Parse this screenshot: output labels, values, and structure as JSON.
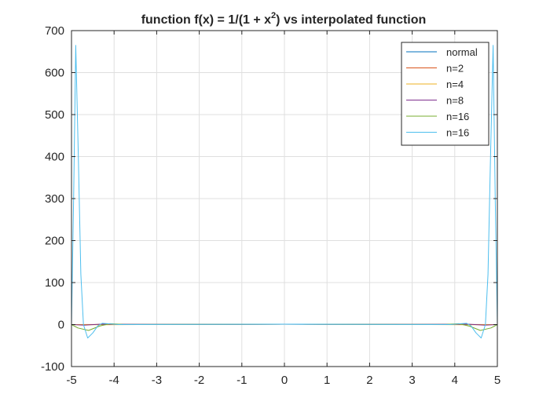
{
  "chart_data": {
    "type": "line",
    "title": {
      "prefix": "function  f(x) = 1/(1 + x",
      "superscript": "2",
      "suffix": ") vs interpolated function"
    },
    "xlabel": "",
    "ylabel": "",
    "xlim": [
      -5,
      5
    ],
    "ylim": [
      -100,
      700
    ],
    "xticks": [
      -5,
      -4,
      -3,
      -2,
      -1,
      0,
      1,
      2,
      3,
      4,
      5
    ],
    "yticks": [
      -100,
      0,
      100,
      200,
      300,
      400,
      500,
      600,
      700
    ],
    "xtick_labels": [
      "-5",
      "-4",
      "-3",
      "-2",
      "-1",
      "0",
      "1",
      "2",
      "3",
      "4",
      "5"
    ],
    "ytick_labels": [
      "-100",
      "0",
      "100",
      "200",
      "300",
      "400",
      "500",
      "600",
      "700"
    ],
    "grid": true,
    "legend_position": "top-right",
    "series": [
      {
        "name": "normal",
        "color": "#0072BD",
        "points": [
          [
            -5,
            0.04
          ],
          [
            -2.5,
            0.14
          ],
          [
            -1,
            0.5
          ],
          [
            0,
            1
          ],
          [
            1,
            0.5
          ],
          [
            2.5,
            0.14
          ],
          [
            5,
            0.04
          ]
        ]
      },
      {
        "name": "n=2",
        "color": "#D95319",
        "points": [
          [
            -5,
            0.04
          ],
          [
            -4,
            0.2
          ],
          [
            -2,
            0.6
          ],
          [
            0,
            1
          ],
          [
            2,
            0.6
          ],
          [
            4,
            0.2
          ],
          [
            5,
            0.04
          ]
        ]
      },
      {
        "name": "n=4",
        "color": "#EDB120",
        "points": [
          [
            -5,
            0.04
          ],
          [
            -4.3,
            -0.35
          ],
          [
            -3,
            0.1
          ],
          [
            0,
            1
          ],
          [
            3,
            0.1
          ],
          [
            4.3,
            -0.35
          ],
          [
            5,
            0.04
          ]
        ]
      },
      {
        "name": "n=8",
        "color": "#7E2F8E",
        "points": [
          [
            -5,
            0.04
          ],
          [
            -4.7,
            -1.5
          ],
          [
            -4.3,
            1.0
          ],
          [
            -3,
            0.3
          ],
          [
            0,
            1
          ],
          [
            3,
            0.3
          ],
          [
            4.3,
            1.0
          ],
          [
            4.7,
            -1.5
          ],
          [
            5,
            0.04
          ]
        ]
      },
      {
        "name": "n=16",
        "color": "#77AC30",
        "points": [
          [
            -5,
            0.04
          ],
          [
            -4.85,
            -8
          ],
          [
            -4.6,
            -14
          ],
          [
            -4.35,
            -4
          ],
          [
            -4.1,
            2
          ],
          [
            -3.8,
            0.5
          ],
          [
            -3,
            0.2
          ],
          [
            0,
            1
          ],
          [
            3,
            0.2
          ],
          [
            3.8,
            0.5
          ],
          [
            4.1,
            2
          ],
          [
            4.35,
            -4
          ],
          [
            4.6,
            -14
          ],
          [
            4.85,
            -8
          ],
          [
            5,
            0.04
          ]
        ]
      },
      {
        "name": "n=16",
        "color": "#4DBEEE",
        "points": [
          [
            -5,
            0.04
          ],
          [
            -4.95,
            300
          ],
          [
            -4.9,
            665
          ],
          [
            -4.84,
            400
          ],
          [
            -4.78,
            120
          ],
          [
            -4.72,
            0
          ],
          [
            -4.62,
            -32
          ],
          [
            -4.5,
            -20
          ],
          [
            -4.38,
            -3
          ],
          [
            -4.28,
            3
          ],
          [
            -4.15,
            2
          ],
          [
            -3.9,
            0
          ],
          [
            -3,
            0.2
          ],
          [
            0,
            1
          ],
          [
            3,
            0.2
          ],
          [
            3.9,
            0
          ],
          [
            4.15,
            2
          ],
          [
            4.28,
            3
          ],
          [
            4.38,
            -3
          ],
          [
            4.5,
            -20
          ],
          [
            4.62,
            -32
          ],
          [
            4.72,
            0
          ],
          [
            4.78,
            120
          ],
          [
            4.84,
            400
          ],
          [
            4.9,
            665
          ],
          [
            4.95,
            300
          ],
          [
            5,
            0.04
          ]
        ]
      }
    ]
  }
}
